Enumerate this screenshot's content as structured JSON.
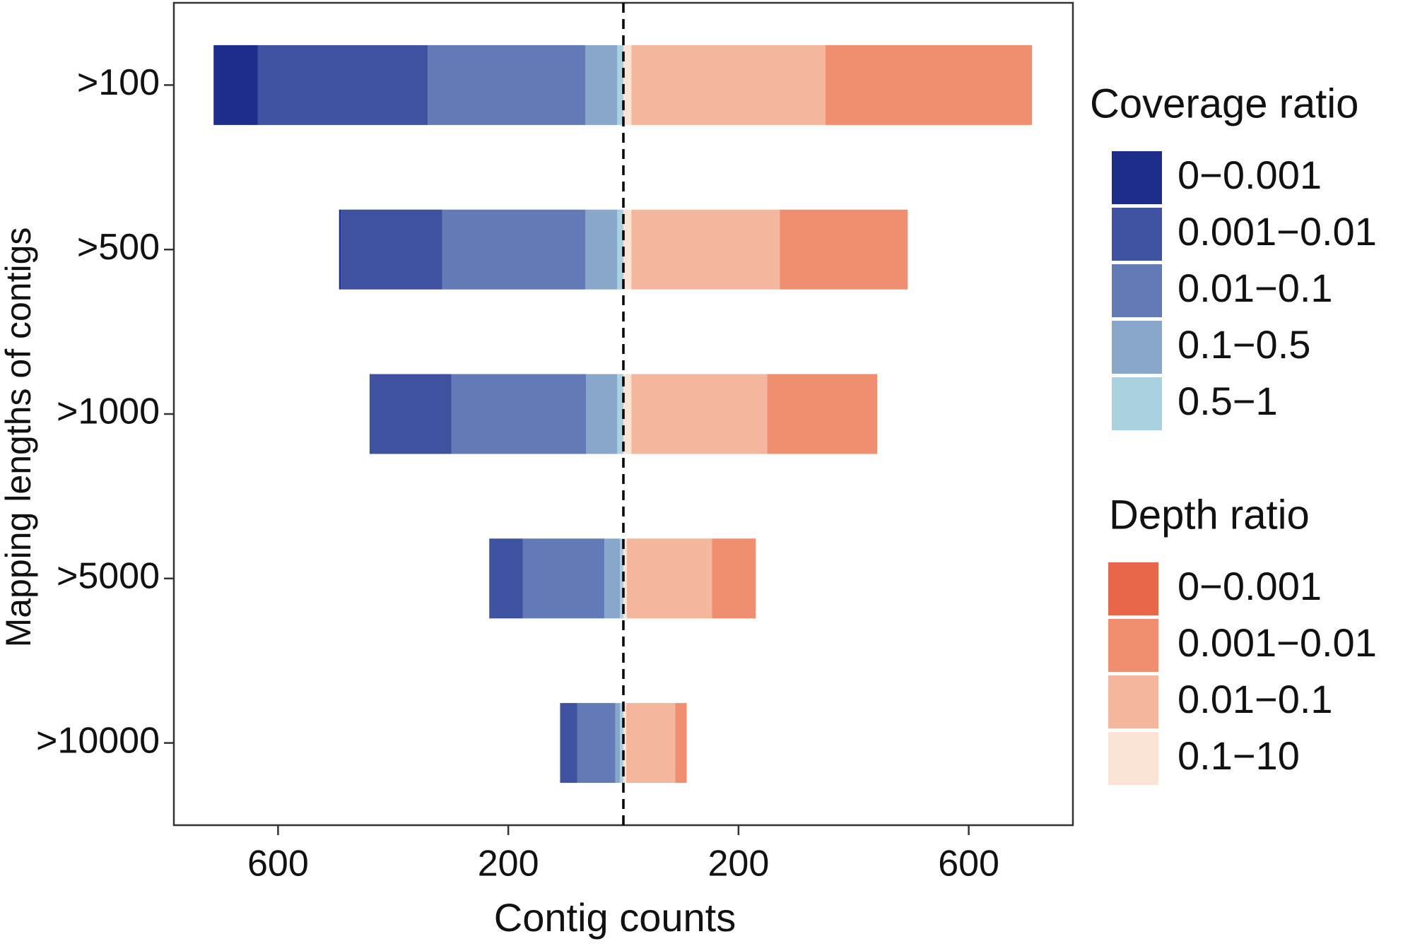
{
  "chart_data": {
    "type": "bar",
    "orientation": "horizontal",
    "xlabel": "Contig counts",
    "ylabel": "Mapping lengths of contigs",
    "categories": [
      ">100",
      ">500",
      ">1000",
      ">5000",
      ">10000"
    ],
    "xlim": [
      -781,
      781
    ],
    "xticks": [
      {
        "value": -600,
        "label": "600"
      },
      {
        "value": -200,
        "label": "200"
      },
      {
        "value": 200,
        "label": "200"
      },
      {
        "value": 600,
        "label": "600"
      }
    ],
    "legends": [
      {
        "title": "Coverage ratio",
        "series": [
          {
            "name": "0−0.001",
            "color": "#1f2d8a",
            "values": [
              -77,
              -3,
              0,
              0,
              0
            ]
          },
          {
            "name": "0.001−0.01",
            "color": "#3f529f",
            "values": [
              -295,
              -176,
              -142,
              -58,
              -30
            ]
          },
          {
            "name": "0.01−0.1",
            "color": "#627bb7",
            "values": [
              -274,
              -249,
              -234,
              -142,
              -66
            ]
          },
          {
            "name": "0.1−0.5",
            "color": "#89a7cb",
            "values": [
              -55,
              -55,
              -54,
              -27,
              -8
            ]
          },
          {
            "name": "0.5−1",
            "color": "#a9d1e0",
            "values": [
              -11,
              -11,
              -11,
              -6,
              -6
            ]
          }
        ]
      },
      {
        "title": "Depth ratio",
        "series": [
          {
            "name": "0−0.001",
            "color": "#e8664a",
            "values": [
              0,
              0,
              0,
              0,
              0
            ]
          },
          {
            "name": "0.001−0.01",
            "color": "#ef8e71",
            "values": [
              359,
              222,
              191,
              76,
              20
            ]
          },
          {
            "name": "0.01−0.1",
            "color": "#f4b79d",
            "values": [
              337,
              258,
              236,
              148,
              85
            ]
          },
          {
            "name": "0.1−10",
            "color": "#fbe3d6",
            "values": [
              14,
              14,
              14,
              6,
              5
            ]
          }
        ]
      }
    ]
  }
}
